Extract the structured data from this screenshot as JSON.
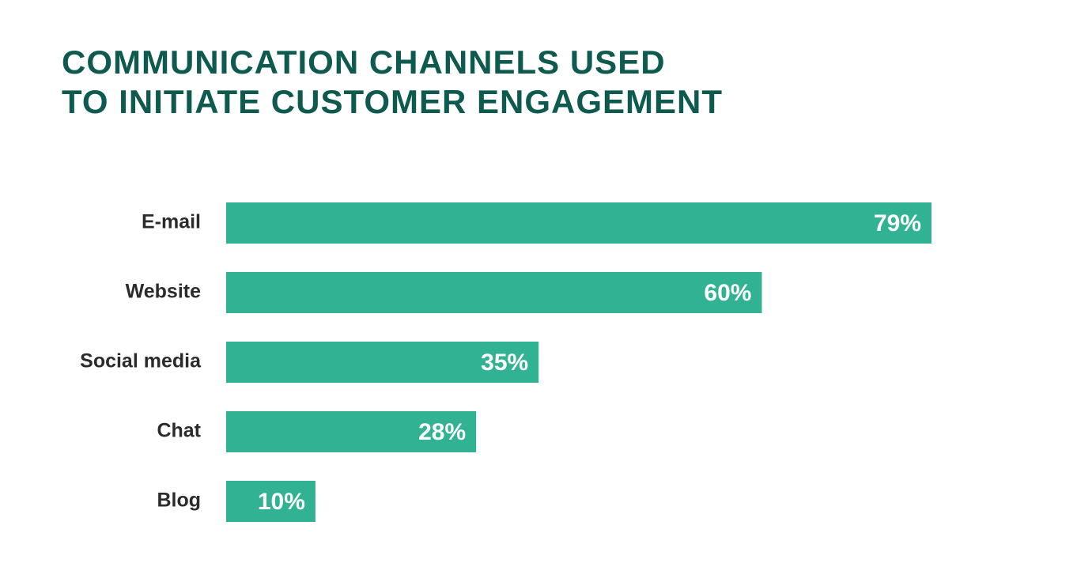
{
  "chart_data": {
    "type": "bar",
    "orientation": "horizontal",
    "title": [
      "COMMUNICATION CHANNELS USED",
      "TO INITIATE CUSTOMER ENGAGEMENT"
    ],
    "categories": [
      "E-mail",
      "Website",
      "Social media",
      "Chat",
      "Blog"
    ],
    "values": [
      79,
      60,
      35,
      28,
      10
    ],
    "value_labels": [
      "79%",
      "60%",
      "35%",
      "28%",
      "10%"
    ],
    "color": "#31b292"
  }
}
